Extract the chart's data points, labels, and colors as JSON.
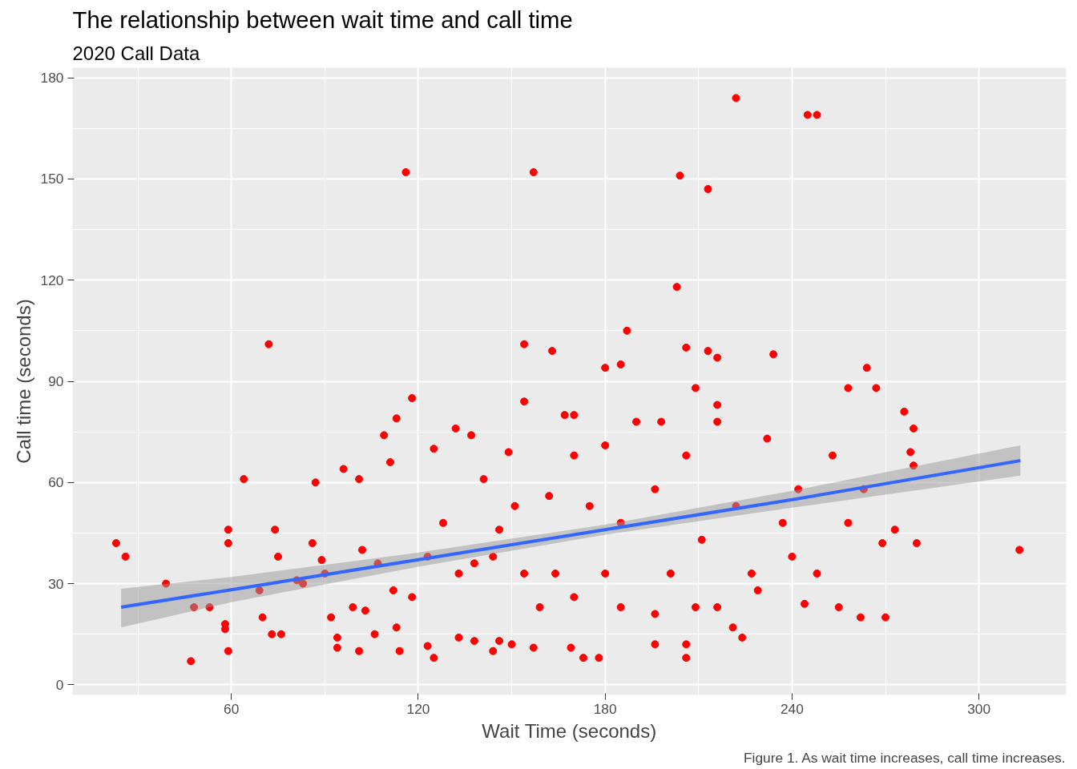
{
  "chart_data": {
    "type": "scatter",
    "title": "The relationship between wait time and call time",
    "subtitle": "2020 Call Data",
    "xlabel": "Wait Time (seconds)",
    "ylabel": "Call time (seconds)",
    "annotations": [
      "Figure 1. As wait time increases, call time increases."
    ],
    "xlim": [
      9,
      328
    ],
    "ylim": [
      -3,
      183
    ],
    "xticks": [
      60,
      120,
      180,
      240,
      300
    ],
    "yticks": [
      0,
      30,
      60,
      90,
      120,
      150,
      180
    ],
    "grid": true,
    "series": [
      {
        "marker": "circle",
        "color": "#ff0000",
        "x": [
          23,
          26,
          39,
          47,
          48,
          53,
          59,
          59,
          58,
          58,
          59,
          64,
          72,
          69,
          74,
          70,
          75,
          73,
          76,
          87,
          86,
          89,
          90,
          96,
          83,
          101,
          102,
          101,
          109,
          111,
          113,
          116,
          118,
          114,
          125,
          123,
          125,
          132,
          137,
          138,
          144,
          154,
          154,
          157,
          163,
          167,
          170,
          178,
          180,
          185,
          187,
          203,
          204,
          213,
          222,
          245,
          248,
          206,
          213,
          216,
          234,
          264,
          258,
          267,
          276,
          279,
          278,
          279,
          280,
          273,
          269,
          270,
          313,
          262,
          244,
          224,
          221,
          206,
          206,
          196,
          173,
          169,
          157,
          150,
          146,
          138,
          133,
          113,
          106,
          103,
          94,
          94,
          92,
          141,
          149,
          146,
          162,
          164,
          175,
          180,
          185,
          190,
          196,
          201,
          206,
          211,
          216,
          222,
          227,
          232,
          237,
          242,
          248,
          253,
          258,
          263,
          128,
          133,
          123,
          118,
          154,
          159,
          170,
          185,
          196,
          209,
          216,
          229,
          255,
          240,
          198,
          209,
          216,
          180,
          170,
          151,
          144,
          107,
          112,
          99,
          81
        ],
        "values": [
          42,
          38,
          30,
          7,
          23,
          23,
          46,
          42,
          18,
          16.5,
          10,
          61,
          101,
          28,
          46,
          20,
          38,
          15,
          15,
          60,
          42,
          37,
          33,
          64,
          30,
          61,
          40,
          10,
          74,
          66,
          79,
          152,
          85,
          10,
          70,
          11.5,
          8,
          76,
          74,
          36,
          10,
          101,
          84,
          152,
          99,
          80,
          80,
          8,
          94,
          95,
          105,
          118,
          151,
          147,
          174,
          169,
          169,
          100,
          99,
          97,
          98,
          94,
          88,
          88,
          81,
          76,
          69,
          65,
          42,
          46,
          42,
          20,
          40,
          20,
          24,
          14,
          17,
          8,
          12,
          12,
          8,
          11,
          11,
          12,
          13,
          13,
          14,
          17,
          15,
          22,
          14,
          11,
          20,
          61,
          69,
          46,
          56,
          33,
          53,
          33,
          48,
          78,
          58,
          33,
          68,
          43,
          78,
          53,
          33,
          73,
          48,
          58,
          33,
          68,
          48,
          58,
          48,
          33,
          38,
          26,
          33,
          23,
          26,
          23,
          21,
          23,
          23,
          28,
          23,
          38,
          78,
          88,
          83,
          71,
          68,
          53,
          38,
          36,
          28,
          23,
          31
        ]
      },
      {
        "type": "line",
        "color": "#3366ff",
        "x": [
          24.6,
          60,
          120,
          180,
          240,
          313.3
        ],
        "values": [
          23,
          28.2,
          37.1,
          46,
          54.9,
          66.5
        ],
        "lower": [
          17,
          24.5,
          35,
          44.5,
          52.5,
          62
        ],
        "upper": [
          28.5,
          32,
          39.2,
          47.5,
          57.5,
          71
        ]
      }
    ]
  }
}
